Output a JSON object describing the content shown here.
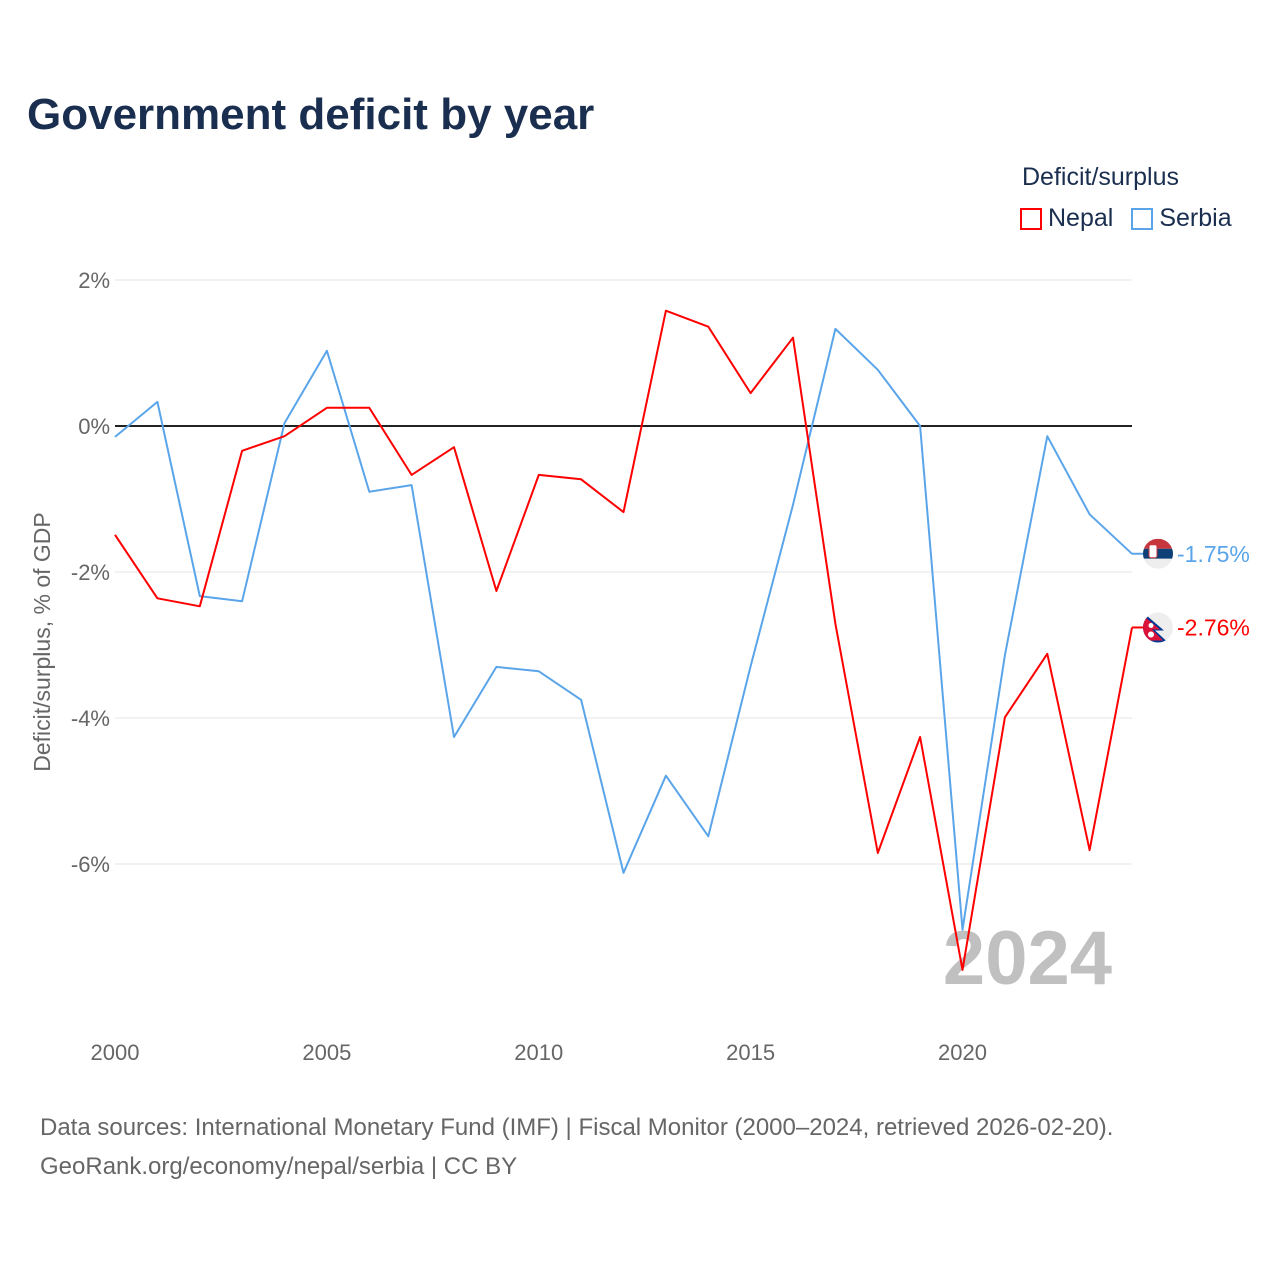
{
  "chart_data": {
    "type": "line",
    "title": "Government deficit by year",
    "xlabel": "",
    "ylabel": "Deficit/surplus, % of GDP",
    "xlim": [
      2000,
      2024
    ],
    "ylim": [
      -8.2,
      2.5
    ],
    "x_ticks": [
      2000,
      2005,
      2010,
      2015,
      2020
    ],
    "x_tick_labels": [
      "2000",
      "2005",
      "2010",
      "2015",
      "2020"
    ],
    "y_ticks": [
      2,
      0,
      -2,
      -4,
      -6
    ],
    "y_tick_labels": [
      "2%",
      "0%",
      "-2%",
      "-4%",
      "-6%"
    ],
    "grid": true,
    "legend_title": "Deficit/surplus",
    "legend_position": "top-right",
    "watermark_year": "2024",
    "x": [
      2000,
      2001,
      2002,
      2003,
      2004,
      2005,
      2006,
      2007,
      2008,
      2009,
      2010,
      2011,
      2012,
      2013,
      2014,
      2015,
      2016,
      2017,
      2018,
      2019,
      2020,
      2021,
      2022,
      2023,
      2024
    ],
    "series": [
      {
        "name": "Nepal",
        "color": "#ff0000",
        "end_label": "-2.76%",
        "values": [
          -1.49,
          -2.36,
          -2.47,
          -0.34,
          -0.14,
          0.25,
          0.25,
          -0.67,
          -0.29,
          -2.26,
          -0.67,
          -0.73,
          -1.18,
          1.58,
          1.36,
          0.45,
          1.21,
          -2.71,
          -5.85,
          -4.26,
          -7.45,
          -3.99,
          -3.12,
          -5.81,
          -2.76
        ]
      },
      {
        "name": "Serbia",
        "color": "#5aa5ea",
        "end_label": "-1.75%",
        "values": [
          -0.15,
          0.33,
          -2.33,
          -2.4,
          0.04,
          1.03,
          -0.9,
          -0.81,
          -4.26,
          -3.3,
          -3.36,
          -3.75,
          -6.12,
          -4.79,
          -5.62,
          -3.29,
          -1.08,
          1.33,
          0.77,
          0.0,
          -6.9,
          -3.14,
          -0.14,
          -1.21,
          -1.75
        ]
      }
    ]
  },
  "footer": {
    "line1": "Data sources: International Monetary Fund (IMF) | Fiscal Monitor (2000–2024, retrieved 2026-02-20).",
    "line2": "GeoRank.org/economy/nepal/serbia | CC BY"
  }
}
